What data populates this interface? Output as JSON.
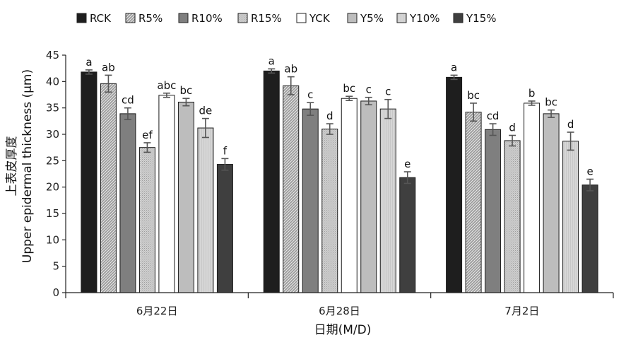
{
  "chart_data": {
    "type": "bar",
    "categories": [
      "6月22日",
      "6月28日",
      "7月2日"
    ],
    "xlabel": "日期(M/D)",
    "ylabel_cn": "上表皮厚度",
    "ylabel_en": "Upper epidermal thickness (μm)",
    "ylim": [
      0,
      45
    ],
    "yticks": [
      0,
      5,
      10,
      15,
      20,
      25,
      30,
      35,
      40,
      45
    ],
    "legend_position": "top",
    "series": [
      {
        "name": "RCK",
        "color": "#1e1e1e",
        "pattern": "solid",
        "values": [
          41.8,
          42.0,
          40.8
        ],
        "errors": [
          0.4,
          0.4,
          0.4
        ],
        "letters": [
          "a",
          "a",
          "a"
        ]
      },
      {
        "name": "R5%",
        "color": "#8c8c8c",
        "pattern": "hatch",
        "values": [
          39.6,
          39.2,
          34.2
        ],
        "errors": [
          1.6,
          1.7,
          1.7
        ],
        "letters": [
          "ab",
          "ab",
          "bc"
        ]
      },
      {
        "name": "R10%",
        "color": "#7f7f7f",
        "pattern": "solid",
        "values": [
          33.9,
          34.8,
          30.9
        ],
        "errors": [
          1.1,
          1.2,
          1.1
        ],
        "letters": [
          "cd",
          "c",
          "cd"
        ]
      },
      {
        "name": "R15%",
        "color": "#c8c8c8",
        "pattern": "dots",
        "values": [
          27.5,
          31.0,
          28.8
        ],
        "errors": [
          0.9,
          1.0,
          1.0
        ],
        "letters": [
          "ef",
          "d",
          "d"
        ]
      },
      {
        "name": "YCK",
        "color": "#ffffff",
        "pattern": "solid",
        "values": [
          37.4,
          36.8,
          35.9
        ],
        "errors": [
          0.4,
          0.4,
          0.4
        ],
        "letters": [
          "abc",
          "bc",
          "b"
        ]
      },
      {
        "name": "Y5%",
        "color": "#bdbdbd",
        "pattern": "solid",
        "values": [
          36.1,
          36.3,
          33.9
        ],
        "errors": [
          0.7,
          0.7,
          0.7
        ],
        "letters": [
          "bc",
          "c",
          "bc"
        ]
      },
      {
        "name": "Y10%",
        "color": "#d0d0d0",
        "pattern": "stripes",
        "values": [
          31.2,
          34.8,
          28.7
        ],
        "errors": [
          1.8,
          1.8,
          1.7
        ],
        "letters": [
          "de",
          "c",
          "d"
        ]
      },
      {
        "name": "Y15%",
        "color": "#3f3f3f",
        "pattern": "solid",
        "values": [
          24.3,
          21.8,
          20.4
        ],
        "errors": [
          1.1,
          1.1,
          1.1
        ],
        "letters": [
          "f",
          "e",
          "e"
        ]
      }
    ]
  }
}
